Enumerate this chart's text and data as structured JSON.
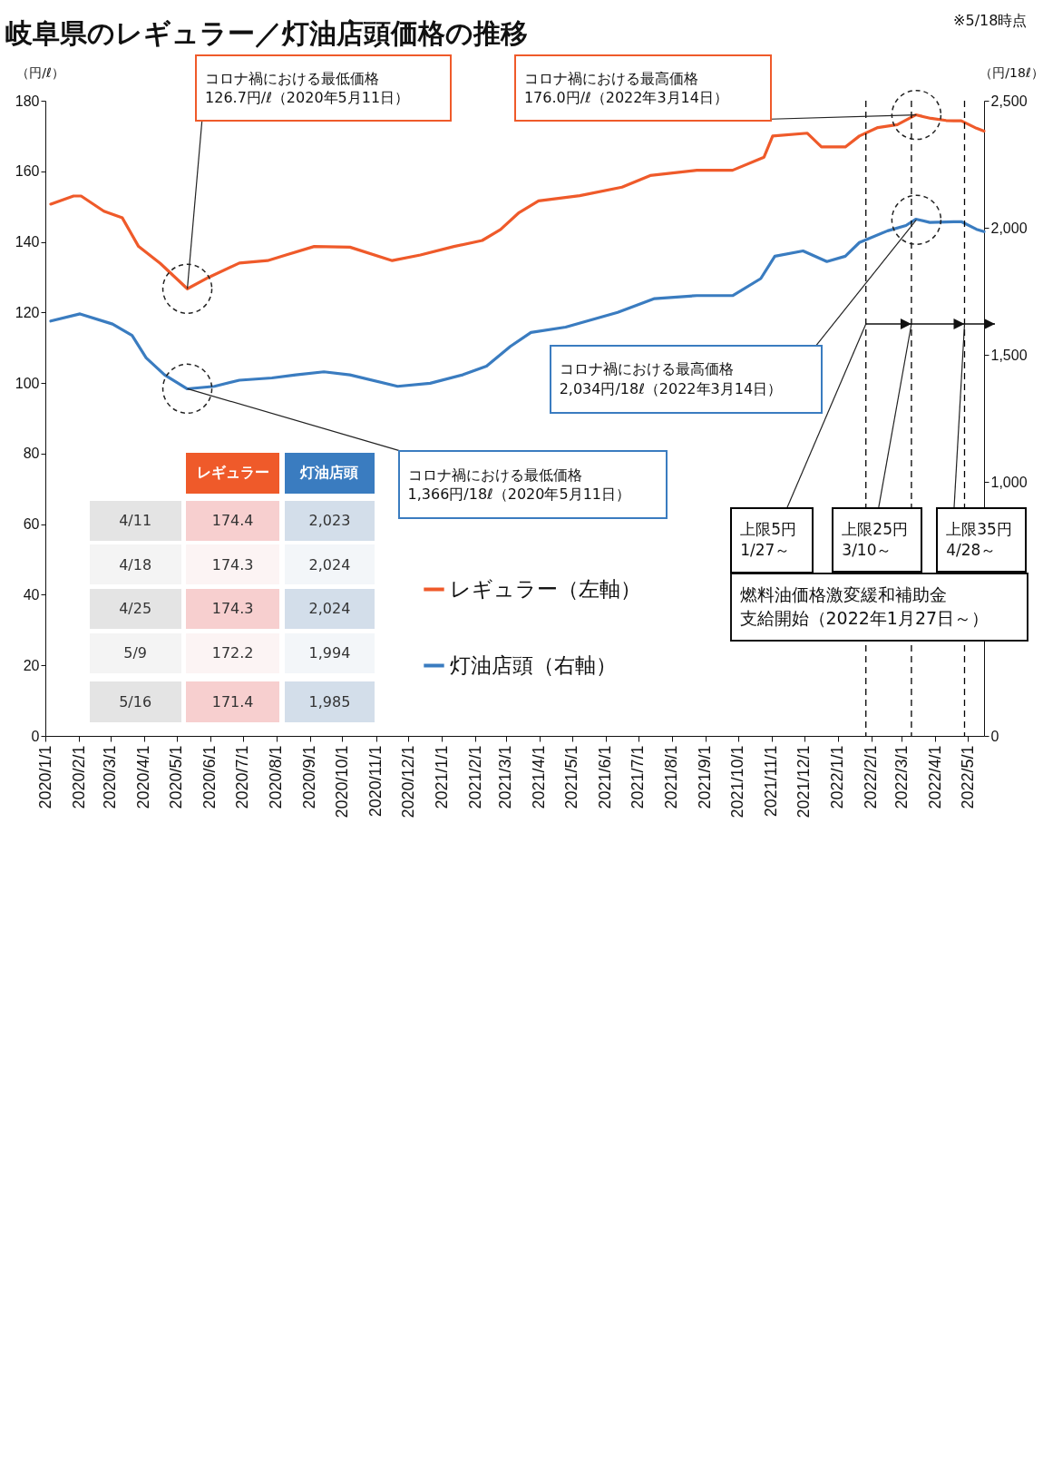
{
  "chart_data": {
    "type": "line",
    "title": "岐阜県のレギュラー／灯油店頭価格の推移",
    "ylabel": "（円/ℓ）",
    "y2label": "（円/18ℓ）",
    "xlim": [
      "2020-01-01",
      "2022-05-16"
    ],
    "xticks": [
      {
        "value": "2020-01-01",
        "label": "2020/1/1"
      },
      {
        "value": "2020-02-01",
        "label": "2020/2/1"
      },
      {
        "value": "2020-03-01",
        "label": "2020/3/1"
      },
      {
        "value": "2020-04-01",
        "label": "2020/4/1"
      },
      {
        "value": "2020-05-01",
        "label": "2020/5/1"
      },
      {
        "value": "2020-06-01",
        "label": "2020/6/1"
      },
      {
        "value": "2020-07-01",
        "label": "2020/7/1"
      },
      {
        "value": "2020-08-01",
        "label": "2020/8/1"
      },
      {
        "value": "2020-09-01",
        "label": "2020/9/1"
      },
      {
        "value": "2020-10-01",
        "label": "2020/10/1"
      },
      {
        "value": "2020-11-01",
        "label": "2020/11/1"
      },
      {
        "value": "2020-12-01",
        "label": "2020/12/1"
      },
      {
        "value": "2021-01-01",
        "label": "2021/1/1"
      },
      {
        "value": "2021-02-01",
        "label": "2021/2/1"
      },
      {
        "value": "2021-03-01",
        "label": "2021/3/1"
      },
      {
        "value": "2021-04-01",
        "label": "2021/4/1"
      },
      {
        "value": "2021-05-01",
        "label": "2021/5/1"
      },
      {
        "value": "2021-06-01",
        "label": "2021/6/1"
      },
      {
        "value": "2021-07-01",
        "label": "2021/7/1"
      },
      {
        "value": "2021-08-01",
        "label": "2021/8/1"
      },
      {
        "value": "2021-09-01",
        "label": "2021/9/1"
      },
      {
        "value": "2021-10-01",
        "label": "2021/10/1"
      },
      {
        "value": "2021-11-01",
        "label": "2021/11/1"
      },
      {
        "value": "2021-12-01",
        "label": "2021/12/1"
      },
      {
        "value": "2022-01-01",
        "label": "2022/1/1"
      },
      {
        "value": "2022-02-01",
        "label": "2022/2/1"
      },
      {
        "value": "2022-03-01",
        "label": "2022/3/1"
      },
      {
        "value": "2022-04-01",
        "label": "2022/4/1"
      },
      {
        "value": "2022-05-01",
        "label": "2022/5/1"
      }
    ],
    "ylim": [
      0,
      180
    ],
    "yticks": [
      0,
      20,
      40,
      60,
      80,
      100,
      120,
      140,
      160,
      180
    ],
    "y2lim": [
      0,
      2500
    ],
    "y2ticks": [
      0,
      {
        "value": 1000,
        "label": "1,000"
      },
      {
        "value": 1500,
        "label": "1,500"
      },
      {
        "value": 2000,
        "label": "2,000"
      },
      {
        "value": 2500,
        "label": "2,500"
      }
    ],
    "legend": "bottom",
    "series": [
      {
        "name": "レギュラー（左軸）",
        "color": "#ef5a2a",
        "x": [
          "2020-01-06",
          "2020-01-27",
          "2020-02-03",
          "2020-02-24",
          "2020-03-12",
          "2020-03-27",
          "2020-04-16",
          "2020-05-11",
          "2020-05-31",
          "2020-06-28",
          "2020-07-24",
          "2020-08-10",
          "2020-09-05",
          "2020-10-08",
          "2020-11-16",
          "2020-12-12",
          "2021-01-12",
          "2021-02-07",
          "2021-02-24",
          "2021-03-13",
          "2021-03-31",
          "2021-05-08",
          "2021-06-16",
          "2021-07-12",
          "2021-08-24",
          "2021-09-26",
          "2021-10-25",
          "2021-11-02",
          "2021-12-04",
          "2021-12-17",
          "2022-01-08",
          "2022-01-21",
          "2022-02-07",
          "2022-02-25",
          "2022-03-14",
          "2022-03-28",
          "2022-04-11",
          "2022-04-18",
          "2022-04-25",
          "2022-05-09",
          "2022-05-16"
        ],
        "values": [
          150.7,
          153.0,
          153.0,
          148.7,
          146.8,
          138.7,
          133.9,
          126.7,
          130.0,
          134.0,
          134.7,
          136.3,
          138.7,
          138.5,
          134.7,
          136.3,
          138.7,
          140.4,
          143.5,
          148.3,
          151.6,
          153.1,
          155.5,
          158.8,
          160.3,
          160.3,
          164.0,
          170.0,
          170.8,
          166.9,
          166.9,
          170.0,
          172.4,
          173.2,
          176.0,
          175.0,
          174.4,
          174.3,
          174.3,
          172.2,
          171.4
        ]
      },
      {
        "name": "灯油店頭（右軸）",
        "color": "#3a7cc0",
        "axis": "y2",
        "x": [
          "2020-01-06",
          "2020-02-02",
          "2020-03-03",
          "2020-03-21",
          "2020-04-03",
          "2020-04-20",
          "2020-05-11",
          "2020-06-05",
          "2020-06-28",
          "2020-07-28",
          "2020-08-19",
          "2020-09-14",
          "2020-10-08",
          "2020-11-21",
          "2020-12-21",
          "2021-01-20",
          "2021-02-11",
          "2021-03-05",
          "2021-03-24",
          "2021-04-25",
          "2021-06-12",
          "2021-07-16",
          "2021-08-24",
          "2021-09-26",
          "2021-10-22",
          "2021-11-04",
          "2021-11-30",
          "2021-12-22",
          "2022-01-08",
          "2022-01-21",
          "2022-02-16",
          "2022-03-05",
          "2022-03-14",
          "2022-03-27",
          "2022-04-11",
          "2022-04-18",
          "2022-04-25",
          "2022-05-09",
          "2022-05-16"
        ],
        "values": [
          1633,
          1661,
          1621,
          1576,
          1488,
          1421,
          1366,
          1376,
          1400,
          1409,
          1421,
          1433,
          1421,
          1376,
          1388,
          1421,
          1455,
          1533,
          1588,
          1609,
          1667,
          1721,
          1733,
          1733,
          1800,
          1888,
          1909,
          1867,
          1888,
          1942,
          1988,
          2009,
          2034,
          2021,
          2023,
          2024,
          2024,
          1994,
          1985
        ]
      }
    ],
    "ref_lines": [
      {
        "axis": "x",
        "value": "2022-01-27",
        "label": "上限5円\n1/27～",
        "color": "#000000",
        "line_style": "dashed"
      },
      {
        "axis": "x",
        "value": "2022-03-10",
        "label": "上限25円\n3/10～",
        "color": "#000000",
        "line_style": "dashed"
      },
      {
        "axis": "x",
        "value": "2022-04-28",
        "label": "上限35円\n4/28～",
        "color": "#000000",
        "line_style": "dashed"
      }
    ],
    "annotations": [
      "※5/18時点",
      {
        "text": "コロナ禍における最低価格\n126.7円/ℓ（2020年5月11日）",
        "x": "2020-05-11",
        "y": 126.7
      },
      "コロナ禍における最高価格\n176.0円/ℓ（2022年3月14日）",
      "コロナ禍における最高価格\n2,034円/18ℓ（2022年3月14日）",
      {
        "text": "コロナ禍における最低価格\n1,366円/18ℓ（2020年5月11日）",
        "x": "2020-05-11",
        "y": 98.4
      },
      "燃料油価格激変緩和補助金",
      "支給開始（2022年1月27日～）",
      "レギュラー",
      "灯油店頭",
      "4/11",
      "4/18",
      "4/25",
      "5/9",
      "5/16",
      "174.4",
      "174.3",
      "174.3",
      "172.2",
      "171.4",
      "2,023",
      "2,024",
      "2,024",
      "1,994",
      "1,985"
    ]
  }
}
